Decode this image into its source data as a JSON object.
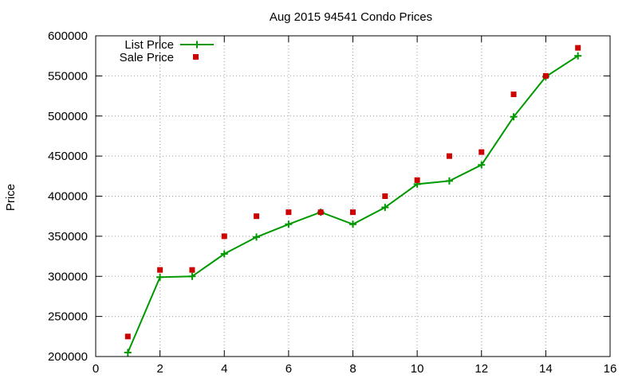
{
  "chart_data": {
    "type": "line",
    "title": "Aug 2015 94541 Condo Prices",
    "xlabel": "",
    "ylabel": "Price",
    "xlim": [
      0,
      16
    ],
    "ylim": [
      200000,
      600000
    ],
    "x_ticks": [
      0,
      2,
      4,
      6,
      8,
      10,
      12,
      14,
      16
    ],
    "y_ticks": [
      200000,
      250000,
      300000,
      350000,
      400000,
      450000,
      500000,
      550000,
      600000
    ],
    "grid": true,
    "legend_position": "top-left",
    "series": [
      {
        "name": "List Price",
        "style": "line-plus",
        "color": "#009900",
        "x": [
          1,
          2,
          3,
          4,
          5,
          6,
          7,
          8,
          9,
          10,
          11,
          12,
          13,
          14,
          15
        ],
        "y": [
          205000,
          299000,
          300000,
          328000,
          349000,
          365000,
          380000,
          365000,
          386000,
          415000,
          419000,
          439000,
          499000,
          549000,
          575000
        ]
      },
      {
        "name": "Sale Price",
        "style": "square",
        "color": "#cc0000",
        "x": [
          1,
          2,
          3,
          4,
          5,
          6,
          7,
          8,
          9,
          10,
          11,
          12,
          13,
          14,
          15
        ],
        "y": [
          225000,
          308000,
          308000,
          350000,
          375000,
          380000,
          380000,
          380000,
          400000,
          420000,
          450000,
          455000,
          527000,
          550000,
          585000
        ]
      }
    ]
  }
}
